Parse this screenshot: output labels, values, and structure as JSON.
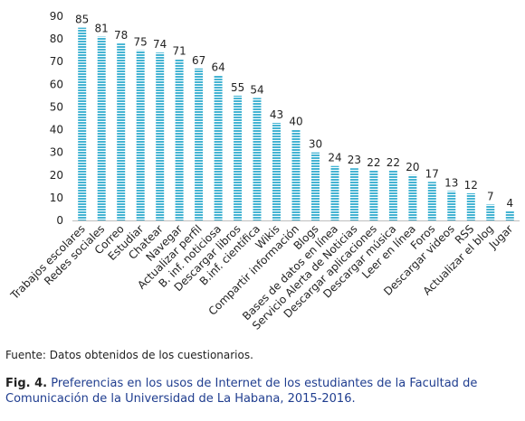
{
  "chart_data": {
    "type": "bar",
    "categories": [
      "Trabajos escolares",
      "Redes sociales",
      "Correo",
      "Estudiar",
      "Chatear",
      "Navegar",
      "Actualizar perfil",
      "B. inf. noticiosa",
      "Descargar libros",
      "B.inf. científica",
      "Wikis",
      "Compartir información",
      "Blogs",
      "Bases de datos en línea",
      "Servicio Alerta de Noticias",
      "Descargar aplicaciones",
      "Descargar música",
      "Leer en línea",
      "Foros",
      "Descargar videos",
      "RSS",
      "Actualizar el blog",
      "Jugar"
    ],
    "values": [
      85,
      81,
      78,
      75,
      74,
      71,
      67,
      64,
      55,
      54,
      43,
      40,
      30,
      24,
      23,
      22,
      22,
      20,
      17,
      13,
      12,
      7,
      4
    ],
    "ylim": [
      0,
      90
    ],
    "yticks": [
      0,
      10,
      20,
      30,
      40,
      50,
      60,
      70,
      80,
      90
    ],
    "grid": false,
    "bar_color": "#45b4d3",
    "bar_pattern": "horizontal-stripes"
  },
  "source_note": "Fuente: Datos obtenidos de los cuestionarios.",
  "caption": {
    "label": "Fig. 4.",
    "text": "Preferencias en los usos de Internet de los estudiantes de la Facultad de Comunicación de la Universidad de La Habana, 2015-2016."
  }
}
